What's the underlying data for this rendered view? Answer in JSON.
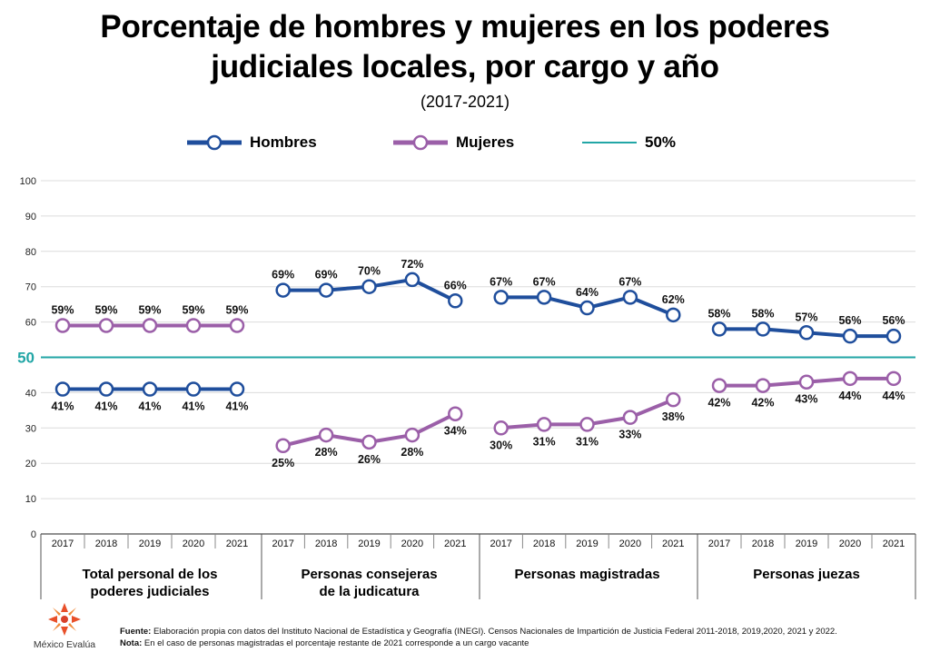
{
  "title_line1": "Porcentaje de hombres y mujeres en los poderes",
  "title_line2": "judiciales locales, por cargo y año",
  "subtitle": "(2017-2021)",
  "legend": {
    "hombres": "Hombres",
    "mujeres": "Mujeres",
    "ref": "50%"
  },
  "colors": {
    "hombres": "#1f4e9c",
    "mujeres": "#9b5fa8",
    "ref": "#22a6a6"
  },
  "chart_data": {
    "type": "line",
    "title": "Porcentaje de hombres y mujeres en los poderes judiciales locales, por cargo y año",
    "subtitle": "(2017-2021)",
    "ylim": [
      0,
      100
    ],
    "yticks": [
      0,
      10,
      20,
      30,
      40,
      50,
      60,
      70,
      80,
      90,
      100
    ],
    "reference_line": {
      "value": 50,
      "label": "50"
    },
    "grid": true,
    "legend_position": "top",
    "years": [
      "2017",
      "2018",
      "2019",
      "2020",
      "2021"
    ],
    "groups": [
      {
        "label_line1": "Total personal de los",
        "label_line2": "poderes judiciales",
        "series": [
          {
            "name": "Hombres",
            "values": [
              41,
              41,
              41,
              41,
              41
            ]
          },
          {
            "name": "Mujeres",
            "values": [
              59,
              59,
              59,
              59,
              59
            ]
          }
        ]
      },
      {
        "label_line1": "Personas consejeras",
        "label_line2": "de la judicatura",
        "series": [
          {
            "name": "Hombres",
            "values": [
              69,
              69,
              70,
              72,
              66
            ]
          },
          {
            "name": "Mujeres",
            "values": [
              25,
              28,
              26,
              28,
              34
            ]
          }
        ]
      },
      {
        "label_line1": "Personas magistradas",
        "label_line2": "",
        "series": [
          {
            "name": "Hombres",
            "values": [
              67,
              67,
              64,
              67,
              62
            ]
          },
          {
            "name": "Mujeres",
            "values": [
              30,
              31,
              31,
              33,
              38
            ]
          }
        ]
      },
      {
        "label_line1": "Personas juezas",
        "label_line2": "",
        "series": [
          {
            "name": "Hombres",
            "values": [
              58,
              58,
              57,
              56,
              56
            ]
          },
          {
            "name": "Mujeres",
            "values": [
              42,
              42,
              43,
              44,
              44
            ]
          }
        ]
      }
    ]
  },
  "footer": {
    "fuente_label": "Fuente:",
    "fuente_text": " Elaboración propia con datos del Instituto Nacional de Estadística y Geografía (INEGI). Censos Nacionales de Impartición de Justicia Federal 2011-2018, 2019,2020, 2021 y 2022.",
    "nota_label": "Nota:",
    "nota_text": " En el caso de personas magistradas el porcentaje restante de 2021 corresponde a un cargo vacante"
  },
  "logo": {
    "name": "México Evalúa"
  }
}
